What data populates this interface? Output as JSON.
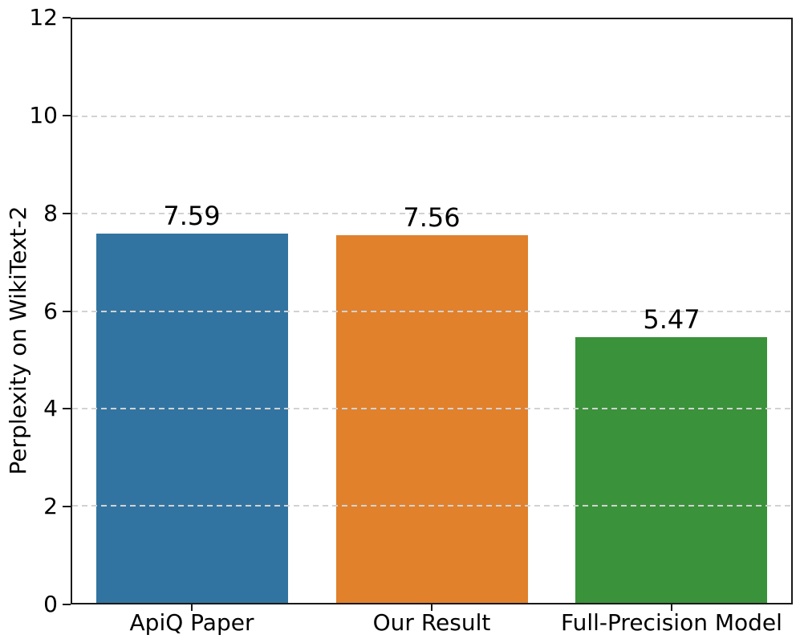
{
  "chart_data": {
    "type": "bar",
    "title": "",
    "categories": [
      "ApiQ Paper",
      "Our Result",
      "Full-Precision Model"
    ],
    "values": [
      7.59,
      7.56,
      5.47
    ],
    "value_labels": [
      "7.59",
      "7.56",
      "5.47"
    ],
    "bar_colors": [
      "#3274a1",
      "#e1812c",
      "#3a923a"
    ],
    "xlabel": "",
    "ylabel": "Perplexity on WikiText-2",
    "ylim": [
      0,
      12
    ],
    "yticks": [
      0,
      2,
      4,
      6,
      8,
      10,
      12
    ],
    "ytick_labels": [
      "0",
      "2",
      "4",
      "6",
      "8",
      "10",
      "12"
    ],
    "bar_width_fraction": 0.8,
    "grid": {
      "axis": "y",
      "style": "dashed",
      "color": "#d2d2d2",
      "drawn_over_bars": true
    },
    "legend": null
  },
  "style": {
    "spine_color": "#1a1a1a",
    "text_color": "#000000",
    "background": "#ffffff"
  }
}
